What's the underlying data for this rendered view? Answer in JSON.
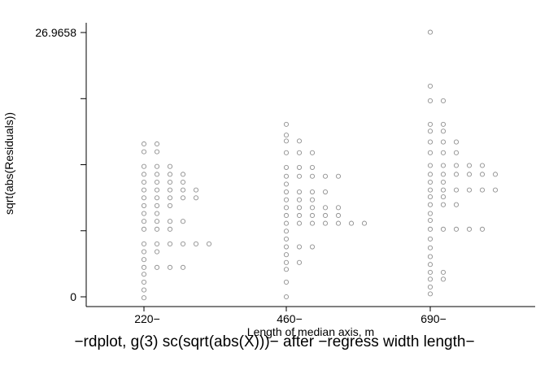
{
  "chart_data": {
    "type": "scatter",
    "title": "",
    "xlabel": "Length of median axis, m",
    "ylabel": "sqrt(abs(Residuals))",
    "caption": "−rdplot, g(3) sc(sqrt(abs(X)))− after −regress width length−",
    "y_tick_labels": [
      "0",
      "26.9658"
    ],
    "ylim": [
      0,
      26.9658
    ],
    "y_minor_ticks": [
      6.74,
      13.48,
      20.22
    ],
    "grid": false,
    "marker": "hollow-circle",
    "colors": {
      "marker": "#909090",
      "axis": "#000000"
    },
    "groups": [
      {
        "label": "220−",
        "points": [
          [
            0,
            15.6
          ],
          [
            1,
            15.6
          ],
          [
            0,
            14.8
          ],
          [
            1,
            14.8
          ],
          [
            0,
            13.3
          ],
          [
            1,
            13.3
          ],
          [
            2,
            13.3
          ],
          [
            0,
            12.5
          ],
          [
            1,
            12.5
          ],
          [
            2,
            12.5
          ],
          [
            3,
            12.5
          ],
          [
            0,
            11.7
          ],
          [
            1,
            11.7
          ],
          [
            2,
            11.7
          ],
          [
            3,
            11.7
          ],
          [
            0,
            10.9
          ],
          [
            1,
            10.9
          ],
          [
            2,
            10.9
          ],
          [
            3,
            10.9
          ],
          [
            4,
            10.9
          ],
          [
            0,
            10.1
          ],
          [
            1,
            10.1
          ],
          [
            2,
            10.1
          ],
          [
            3,
            10.1
          ],
          [
            4,
            10.1
          ],
          [
            0,
            9.3
          ],
          [
            1,
            9.3
          ],
          [
            2,
            9.3
          ],
          [
            0,
            8.5
          ],
          [
            1,
            8.5
          ],
          [
            0,
            7.7
          ],
          [
            1,
            7.7
          ],
          [
            2,
            7.7
          ],
          [
            3,
            7.7
          ],
          [
            0,
            6.9
          ],
          [
            1,
            6.9
          ],
          [
            2,
            6.9
          ],
          [
            0,
            5.4
          ],
          [
            1,
            5.4
          ],
          [
            2,
            5.4
          ],
          [
            3,
            5.4
          ],
          [
            4,
            5.4
          ],
          [
            5,
            5.4
          ],
          [
            0,
            4.6
          ],
          [
            1,
            4.6
          ],
          [
            0,
            3.8
          ],
          [
            0,
            3.0
          ],
          [
            1,
            3.0
          ],
          [
            2,
            3.0
          ],
          [
            3,
            3.0
          ],
          [
            0,
            2.3
          ],
          [
            0,
            1.5
          ],
          [
            0,
            0.7
          ],
          [
            0,
            -0.1
          ]
        ]
      },
      {
        "label": "460−",
        "points": [
          [
            0,
            17.6
          ],
          [
            0,
            16.5
          ],
          [
            0,
            15.9
          ],
          [
            1,
            15.9
          ],
          [
            0,
            14.7
          ],
          [
            1,
            14.7
          ],
          [
            2,
            14.7
          ],
          [
            0,
            13.2
          ],
          [
            1,
            13.2
          ],
          [
            2,
            13.2
          ],
          [
            0,
            12.3
          ],
          [
            1,
            12.3
          ],
          [
            2,
            12.3
          ],
          [
            3,
            12.3
          ],
          [
            4,
            12.3
          ],
          [
            0,
            11.5
          ],
          [
            0,
            10.7
          ],
          [
            1,
            10.7
          ],
          [
            2,
            10.7
          ],
          [
            3,
            10.7
          ],
          [
            0,
            9.9
          ],
          [
            1,
            9.9
          ],
          [
            2,
            9.9
          ],
          [
            0,
            9.1
          ],
          [
            1,
            9.1
          ],
          [
            2,
            9.1
          ],
          [
            3,
            9.1
          ],
          [
            4,
            9.1
          ],
          [
            0,
            8.3
          ],
          [
            1,
            8.3
          ],
          [
            2,
            8.3
          ],
          [
            3,
            8.3
          ],
          [
            4,
            8.3
          ],
          [
            0,
            7.5
          ],
          [
            1,
            7.5
          ],
          [
            2,
            7.5
          ],
          [
            3,
            7.5
          ],
          [
            4,
            7.5
          ],
          [
            5,
            7.5
          ],
          [
            6,
            7.5
          ],
          [
            0,
            6.7
          ],
          [
            0,
            5.9
          ],
          [
            0,
            5.1
          ],
          [
            1,
            5.1
          ],
          [
            2,
            5.1
          ],
          [
            0,
            4.3
          ],
          [
            0,
            3.5
          ],
          [
            1,
            3.5
          ],
          [
            0,
            2.8
          ],
          [
            0,
            1.5
          ],
          [
            0,
            0.0
          ]
        ]
      },
      {
        "label": "690−",
        "points": [
          [
            0,
            27.0
          ],
          [
            0,
            21.5
          ],
          [
            0,
            20.0
          ],
          [
            1,
            20.0
          ],
          [
            0,
            17.6
          ],
          [
            1,
            17.6
          ],
          [
            0,
            16.9
          ],
          [
            1,
            16.9
          ],
          [
            0,
            15.8
          ],
          [
            1,
            15.8
          ],
          [
            2,
            15.8
          ],
          [
            0,
            14.7
          ],
          [
            1,
            14.7
          ],
          [
            2,
            14.7
          ],
          [
            0,
            13.4
          ],
          [
            1,
            13.4
          ],
          [
            2,
            13.4
          ],
          [
            3,
            13.4
          ],
          [
            4,
            13.4
          ],
          [
            0,
            12.5
          ],
          [
            1,
            12.5
          ],
          [
            2,
            12.5
          ],
          [
            3,
            12.5
          ],
          [
            4,
            12.5
          ],
          [
            5,
            12.5
          ],
          [
            0,
            11.7
          ],
          [
            1,
            11.7
          ],
          [
            0,
            10.9
          ],
          [
            1,
            10.9
          ],
          [
            2,
            10.9
          ],
          [
            3,
            10.9
          ],
          [
            4,
            10.9
          ],
          [
            5,
            10.9
          ],
          [
            0,
            10.2
          ],
          [
            1,
            10.2
          ],
          [
            0,
            9.4
          ],
          [
            1,
            9.4
          ],
          [
            2,
            9.4
          ],
          [
            0,
            8.5
          ],
          [
            0,
            7.8
          ],
          [
            0,
            6.9
          ],
          [
            1,
            6.9
          ],
          [
            2,
            6.9
          ],
          [
            3,
            6.9
          ],
          [
            4,
            6.9
          ],
          [
            0,
            5.9
          ],
          [
            0,
            5.0
          ],
          [
            0,
            4.1
          ],
          [
            0,
            3.3
          ],
          [
            0,
            2.5
          ],
          [
            1,
            2.5
          ],
          [
            0,
            1.8
          ],
          [
            1,
            1.8
          ],
          [
            0,
            1.0
          ],
          [
            0,
            0.3
          ]
        ]
      }
    ]
  }
}
